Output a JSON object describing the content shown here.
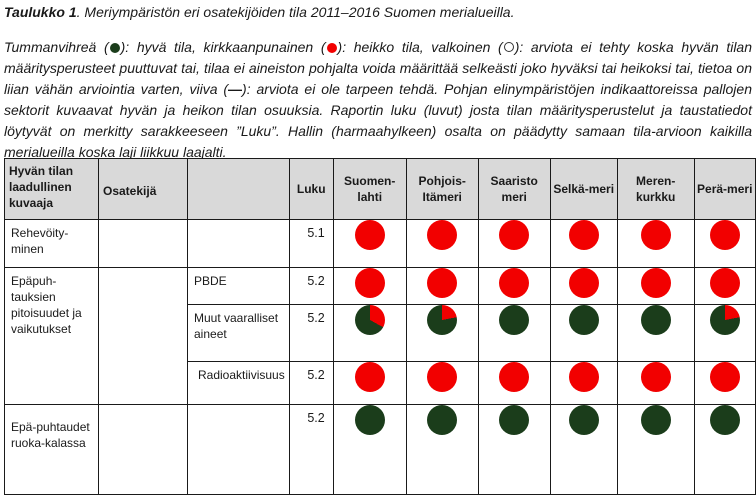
{
  "caption": {
    "label": "Taulukko 1",
    "text": ". Meriympäristön eri osatekijöiden tila 2011–2016 Suomen merialueilla."
  },
  "description": {
    "part1": "Tummanvihreä (",
    "part2": "): hyvä tila, kirkkaanpunainen (",
    "part3": "): heikko tila, valkoinen (",
    "part4": "): arviota ei tehty koska hyvän tilan määritysperusteet puuttuvat tai, tilaa ei aineiston pohjalta voida määrittää selkeästi joko hyväksi tai heikoksi tai, tietoa on liian vähän arviointia varten, viiva (",
    "dash": "—",
    "part5": "): arviota ei ole tarpeen tehdä. Pohjan elinympäristöjen indikaattoreissa pallojen sektorit kuvaavat hyvän ja heikon tilan osuuksia. Raportin luku (luvut) josta tilan määritysperustelut ja taustatiedot löytyvät on merkitty sarakkeeseen ”Luku”. Hallin (harmaahylkeen) osalta on päädytty samaan tila-arvioon kaikilla merialueilla koska laji liikkuu laajalti."
  },
  "table": {
    "headers": {
      "col1": "Hyvän tilan laadullinen kuvaaja",
      "col2": "Osatekijä",
      "col3": "",
      "luku": "Luku",
      "areas": [
        "Suomen-lahti",
        "Pohjois-Itämeri",
        "Saaristo meri",
        "Selkä-meri",
        "Meren-kurkku",
        "Perä-meri"
      ]
    },
    "rows": [
      {
        "descriptor": "Rehevöity-minen",
        "sub": "",
        "luku": "5.1",
        "status": [
          "red",
          "red",
          "red",
          "red",
          "red",
          "red"
        ]
      },
      {
        "descriptor": "Epäpuh-tauksien pitoisuudet ja vaikutukset",
        "sub": "PBDE",
        "luku": "5.2",
        "status": [
          "red",
          "red",
          "red",
          "red",
          "red",
          "red"
        ]
      },
      {
        "descriptor": "",
        "sub": "Muut vaaralliset aineet",
        "luku": "5.2",
        "status": [
          "mixed",
          "mixed",
          "green",
          "green",
          "green",
          "mixed"
        ]
      },
      {
        "descriptor": "",
        "sub": "Radioaktiivisuus",
        "luku": "5.2",
        "status": [
          "red",
          "red",
          "red",
          "red",
          "red",
          "red"
        ]
      },
      {
        "descriptor": "Epä-puhtaudet ruoka-kalassa",
        "sub": "",
        "luku": "5.2",
        "status": [
          "green",
          "green",
          "green",
          "green",
          "green",
          "green"
        ]
      }
    ]
  },
  "colors": {
    "good": "#1b3d1b",
    "poor": "#f20000",
    "header_bg": "#d9d9d9"
  }
}
